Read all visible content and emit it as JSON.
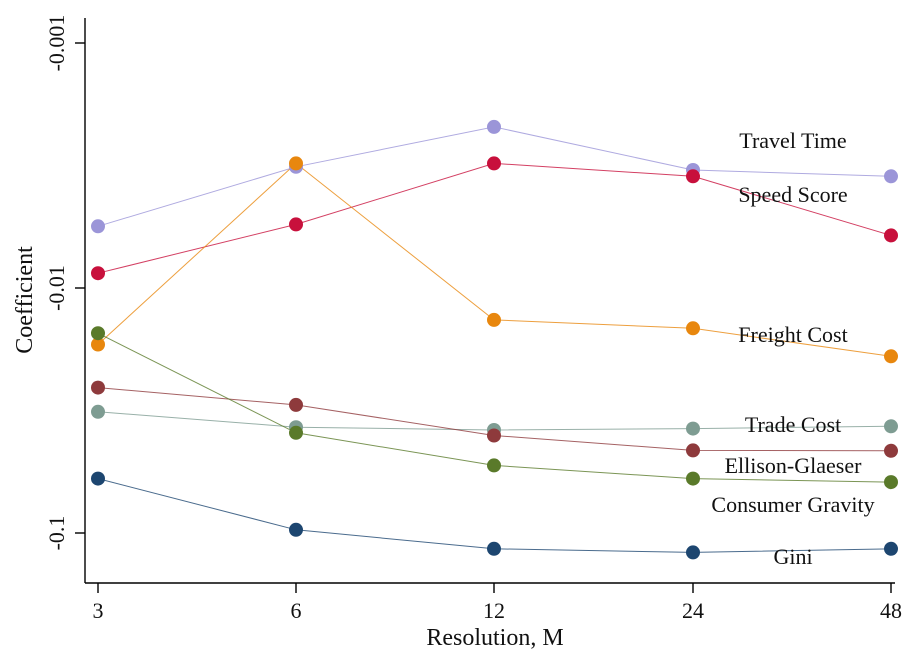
{
  "chart_data": {
    "type": "line",
    "xlabel": "Resolution, M",
    "ylabel": "Coefficient",
    "y_scale": "log",
    "y_direction": "descending-magnitude",
    "categories": [
      "3",
      "6",
      "12",
      "24",
      "48"
    ],
    "yticks": [
      {
        "value": -0.001,
        "label": "-0.001"
      },
      {
        "value": -0.01,
        "label": "-0.01"
      },
      {
        "value": -0.1,
        "label": "-0.1"
      }
    ],
    "grid": false,
    "legend": "inline labels at right",
    "series": [
      {
        "name": "Travel Time",
        "color": "#9b95d8",
        "values": [
          -0.0056,
          -0.0032,
          -0.0022,
          -0.0033,
          -0.0035
        ]
      },
      {
        "name": "Speed Score",
        "color": "#c8103c",
        "values": [
          -0.0087,
          -0.0055,
          -0.0031,
          -0.0035,
          -0.0061
        ]
      },
      {
        "name": "Freight Cost",
        "color": "#e8870e",
        "values": [
          -0.017,
          -0.0031,
          -0.0135,
          -0.0146,
          -0.019
        ]
      },
      {
        "name": "Trade Cost",
        "color": "#7e9c92",
        "values": [
          -0.032,
          -0.037,
          -0.038,
          -0.0375,
          -0.0367
        ]
      },
      {
        "name": "Ellison-Glaeser",
        "color": "#8e3a3c",
        "values": [
          -0.0255,
          -0.03,
          -0.04,
          -0.046,
          -0.0462
        ]
      },
      {
        "name": "Consumer Gravity",
        "color": "#5a7a2a",
        "values": [
          -0.0153,
          -0.039,
          -0.053,
          -0.06,
          -0.062
        ]
      },
      {
        "name": "Gini",
        "color": "#1d4670",
        "values": [
          -0.06,
          -0.097,
          -0.116,
          -0.12,
          -0.116
        ]
      }
    ]
  }
}
